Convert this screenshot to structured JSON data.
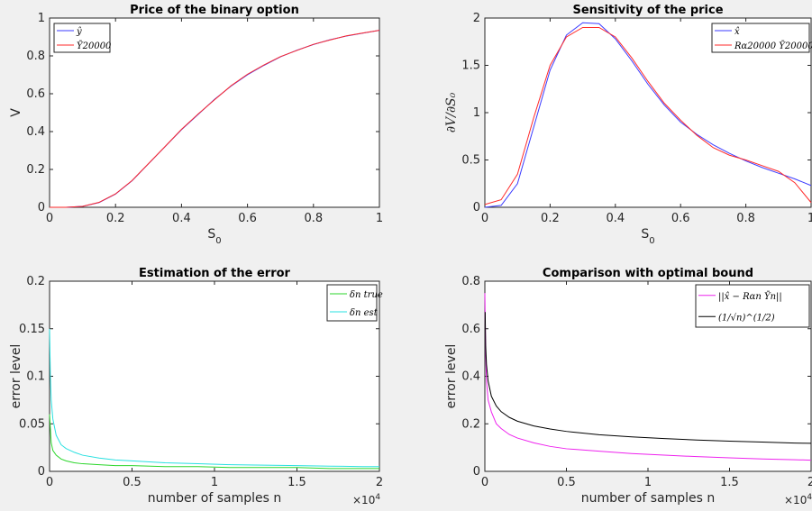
{
  "chart_data": [
    {
      "type": "line",
      "title": "Price of the binary option",
      "xlabel": "S",
      "xlabel_sub": "0",
      "ylabel": "V",
      "xlim": [
        0,
        1
      ],
      "ylim": [
        0,
        1
      ],
      "x_ticks": [
        0,
        0.2,
        0.4,
        0.6,
        0.8,
        1
      ],
      "x_tick_labels": [
        "0",
        "0.2",
        "0.4",
        "0.6",
        "0.8",
        "1"
      ],
      "y_ticks": [
        0,
        0.2,
        0.4,
        0.6,
        0.8,
        1
      ],
      "y_tick_labels": [
        "0",
        "0.2",
        "0.4",
        "0.6",
        "0.8",
        "1"
      ],
      "legend_position": "top-left",
      "series": [
        {
          "name": "ŷ",
          "color": "#3b3bff",
          "x": [
            0,
            0.05,
            0.1,
            0.15,
            0.2,
            0.25,
            0.3,
            0.35,
            0.4,
            0.45,
            0.5,
            0.55,
            0.6,
            0.65,
            0.7,
            0.75,
            0.8,
            0.85,
            0.9,
            0.95,
            1
          ],
          "y": [
            0,
            0,
            0.005,
            0.025,
            0.07,
            0.14,
            0.23,
            0.32,
            0.41,
            0.49,
            0.57,
            0.64,
            0.7,
            0.75,
            0.795,
            0.83,
            0.86,
            0.885,
            0.905,
            0.92,
            0.935
          ]
        },
        {
          "name": "Ȳ20000",
          "color": "#ff2a2a",
          "x": [
            0,
            0.05,
            0.1,
            0.15,
            0.2,
            0.25,
            0.3,
            0.35,
            0.4,
            0.45,
            0.5,
            0.55,
            0.6,
            0.65,
            0.7,
            0.75,
            0.8,
            0.85,
            0.9,
            0.95,
            1
          ],
          "y": [
            0,
            0,
            0.005,
            0.026,
            0.071,
            0.141,
            0.231,
            0.321,
            0.412,
            0.492,
            0.568,
            0.642,
            0.703,
            0.752,
            0.796,
            0.829,
            0.861,
            0.884,
            0.906,
            0.921,
            0.935
          ]
        }
      ]
    },
    {
      "type": "line",
      "title": "Sensitivity of the price",
      "xlabel": "S",
      "xlabel_sub": "0",
      "ylabel": "∂V/∂S₀",
      "xlim": [
        0,
        1
      ],
      "ylim": [
        0,
        2
      ],
      "x_ticks": [
        0,
        0.2,
        0.4,
        0.6,
        0.8,
        1
      ],
      "x_tick_labels": [
        "0",
        "0.2",
        "0.4",
        "0.6",
        "0.8",
        "1"
      ],
      "y_ticks": [
        0,
        0.5,
        1,
        1.5,
        2
      ],
      "y_tick_labels": [
        "0",
        "0.5",
        "1",
        "1.5",
        "2"
      ],
      "legend_position": "top-right",
      "series": [
        {
          "name": "x̂",
          "color": "#3b3bff",
          "x": [
            0,
            0.05,
            0.1,
            0.15,
            0.2,
            0.25,
            0.3,
            0.35,
            0.4,
            0.45,
            0.5,
            0.55,
            0.6,
            0.65,
            0.7,
            0.75,
            0.8,
            0.85,
            0.9,
            0.95,
            1
          ],
          "y": [
            0,
            0.02,
            0.25,
            0.85,
            1.45,
            1.82,
            1.95,
            1.94,
            1.78,
            1.55,
            1.3,
            1.08,
            0.9,
            0.77,
            0.66,
            0.57,
            0.49,
            0.42,
            0.36,
            0.3,
            0.23
          ]
        },
        {
          "name": "Rα20000 Ȳ20000",
          "color": "#ff2a2a",
          "x": [
            0,
            0.05,
            0.1,
            0.15,
            0.2,
            0.25,
            0.3,
            0.35,
            0.4,
            0.45,
            0.5,
            0.55,
            0.6,
            0.65,
            0.7,
            0.75,
            0.8,
            0.85,
            0.9,
            0.95,
            1
          ],
          "y": [
            0.03,
            0.08,
            0.35,
            0.95,
            1.5,
            1.8,
            1.9,
            1.9,
            1.8,
            1.58,
            1.33,
            1.1,
            0.92,
            0.76,
            0.63,
            0.55,
            0.5,
            0.44,
            0.38,
            0.26,
            0.05
          ]
        }
      ]
    },
    {
      "type": "line",
      "title": "Estimation of the error",
      "xlabel": "number of samples n",
      "ylabel": "error level",
      "axis_multiplier": "×10",
      "axis_multiplier_exp": "4",
      "xlim": [
        0,
        2
      ],
      "ylim": [
        0,
        0.2
      ],
      "x_ticks": [
        0,
        0.5,
        1,
        1.5,
        2
      ],
      "x_tick_labels": [
        "0",
        "0.5",
        "1",
        "1.5",
        "2"
      ],
      "y_ticks": [
        0,
        0.05,
        0.1,
        0.15,
        0.2
      ],
      "y_tick_labels": [
        "0",
        "0.05",
        "0.1",
        "0.15",
        "0.2"
      ],
      "legend_position": "top-right",
      "series": [
        {
          "name": "δn true",
          "color": "#2bd62b",
          "x": [
            0,
            0.005,
            0.01,
            0.02,
            0.04,
            0.07,
            0.1,
            0.15,
            0.2,
            0.3,
            0.4,
            0.5,
            0.7,
            0.9,
            1.1,
            1.3,
            1.5,
            1.7,
            1.9,
            2
          ],
          "y": [
            0.06,
            0.045,
            0.03,
            0.022,
            0.017,
            0.013,
            0.011,
            0.009,
            0.008,
            0.007,
            0.006,
            0.006,
            0.005,
            0.005,
            0.004,
            0.004,
            0.004,
            0.003,
            0.003,
            0.003
          ]
        },
        {
          "name": "δn est",
          "color": "#29e0e0",
          "x": [
            0,
            0.005,
            0.01,
            0.02,
            0.04,
            0.07,
            0.1,
            0.15,
            0.2,
            0.3,
            0.4,
            0.5,
            0.7,
            0.9,
            1.1,
            1.3,
            1.5,
            1.7,
            1.9,
            2
          ],
          "y": [
            0.15,
            0.1,
            0.075,
            0.055,
            0.038,
            0.028,
            0.024,
            0.02,
            0.017,
            0.014,
            0.012,
            0.011,
            0.009,
            0.008,
            0.007,
            0.0065,
            0.006,
            0.0055,
            0.005,
            0.005
          ]
        }
      ]
    },
    {
      "type": "line",
      "title": "Comparison with optimal bound",
      "xlabel": "number of samples n",
      "ylabel": "error level",
      "axis_multiplier": "×10",
      "axis_multiplier_exp": "4",
      "xlim": [
        0,
        2
      ],
      "ylim": [
        0,
        0.8
      ],
      "x_ticks": [
        0,
        0.5,
        1,
        1.5,
        2
      ],
      "x_tick_labels": [
        "0",
        "0.5",
        "1",
        "1.5",
        "2"
      ],
      "y_ticks": [
        0,
        0.2,
        0.4,
        0.6,
        0.8
      ],
      "y_tick_labels": [
        "0",
        "0.2",
        "0.4",
        "0.6",
        "0.8"
      ],
      "legend_position": "top-right",
      "series": [
        {
          "name": "||x̂ − Rαn Ȳn||",
          "color": "#ee22ee",
          "x": [
            0,
            0.005,
            0.01,
            0.02,
            0.04,
            0.07,
            0.1,
            0.15,
            0.2,
            0.3,
            0.4,
            0.5,
            0.7,
            0.9,
            1.1,
            1.3,
            1.5,
            1.7,
            1.9,
            2
          ],
          "y": [
            0.75,
            0.5,
            0.38,
            0.3,
            0.25,
            0.2,
            0.18,
            0.155,
            0.14,
            0.12,
            0.105,
            0.095,
            0.085,
            0.075,
            0.068,
            0.062,
            0.057,
            0.052,
            0.049,
            0.047
          ]
        },
        {
          "name": "(1/√n)^(1/2)",
          "color": "#000000",
          "x": [
            0.002,
            0.005,
            0.01,
            0.02,
            0.04,
            0.07,
            0.1,
            0.15,
            0.2,
            0.3,
            0.4,
            0.5,
            0.7,
            0.9,
            1.1,
            1.3,
            1.5,
            1.7,
            1.9,
            2
          ],
          "y": [
            0.67,
            0.53,
            0.45,
            0.38,
            0.316,
            0.275,
            0.251,
            0.227,
            0.211,
            0.191,
            0.178,
            0.168,
            0.154,
            0.145,
            0.138,
            0.132,
            0.127,
            0.123,
            0.119,
            0.118
          ]
        }
      ]
    }
  ]
}
